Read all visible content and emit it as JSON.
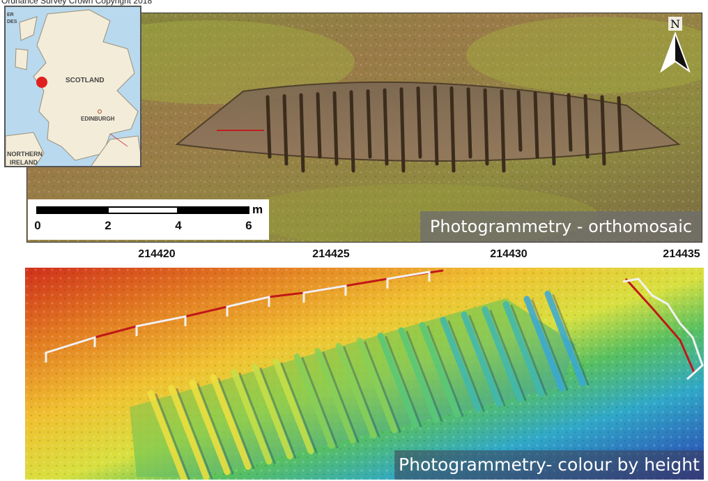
{
  "credit": "Ordnance Survey Crown Copyright 2018",
  "inset_map": {
    "labels": [
      "SCOTLAND",
      "EDINBURGH",
      "NORTHERN",
      "IRELAND",
      "ER",
      "DES"
    ],
    "marker_color": "#e02020"
  },
  "north_arrow": {
    "label": "N",
    "icon": "north-arrow-icon"
  },
  "scale_bar": {
    "ticks": [
      "0",
      "2",
      "4",
      "6"
    ],
    "unit": "m"
  },
  "eastings": [
    "214420",
    "214425",
    "214430",
    "214435"
  ],
  "panels": {
    "orthomosaic_label": "Photogrammetry - orthomosaic",
    "height_label": "Photogrammetry- colour by height"
  },
  "colors": {
    "ground": "#8a7a4a",
    "hull": "#6b5a44",
    "height_high": "#d02010",
    "height_mid": "#f0d020",
    "height_low": "#2040b0",
    "profile_line": "#c01818"
  }
}
